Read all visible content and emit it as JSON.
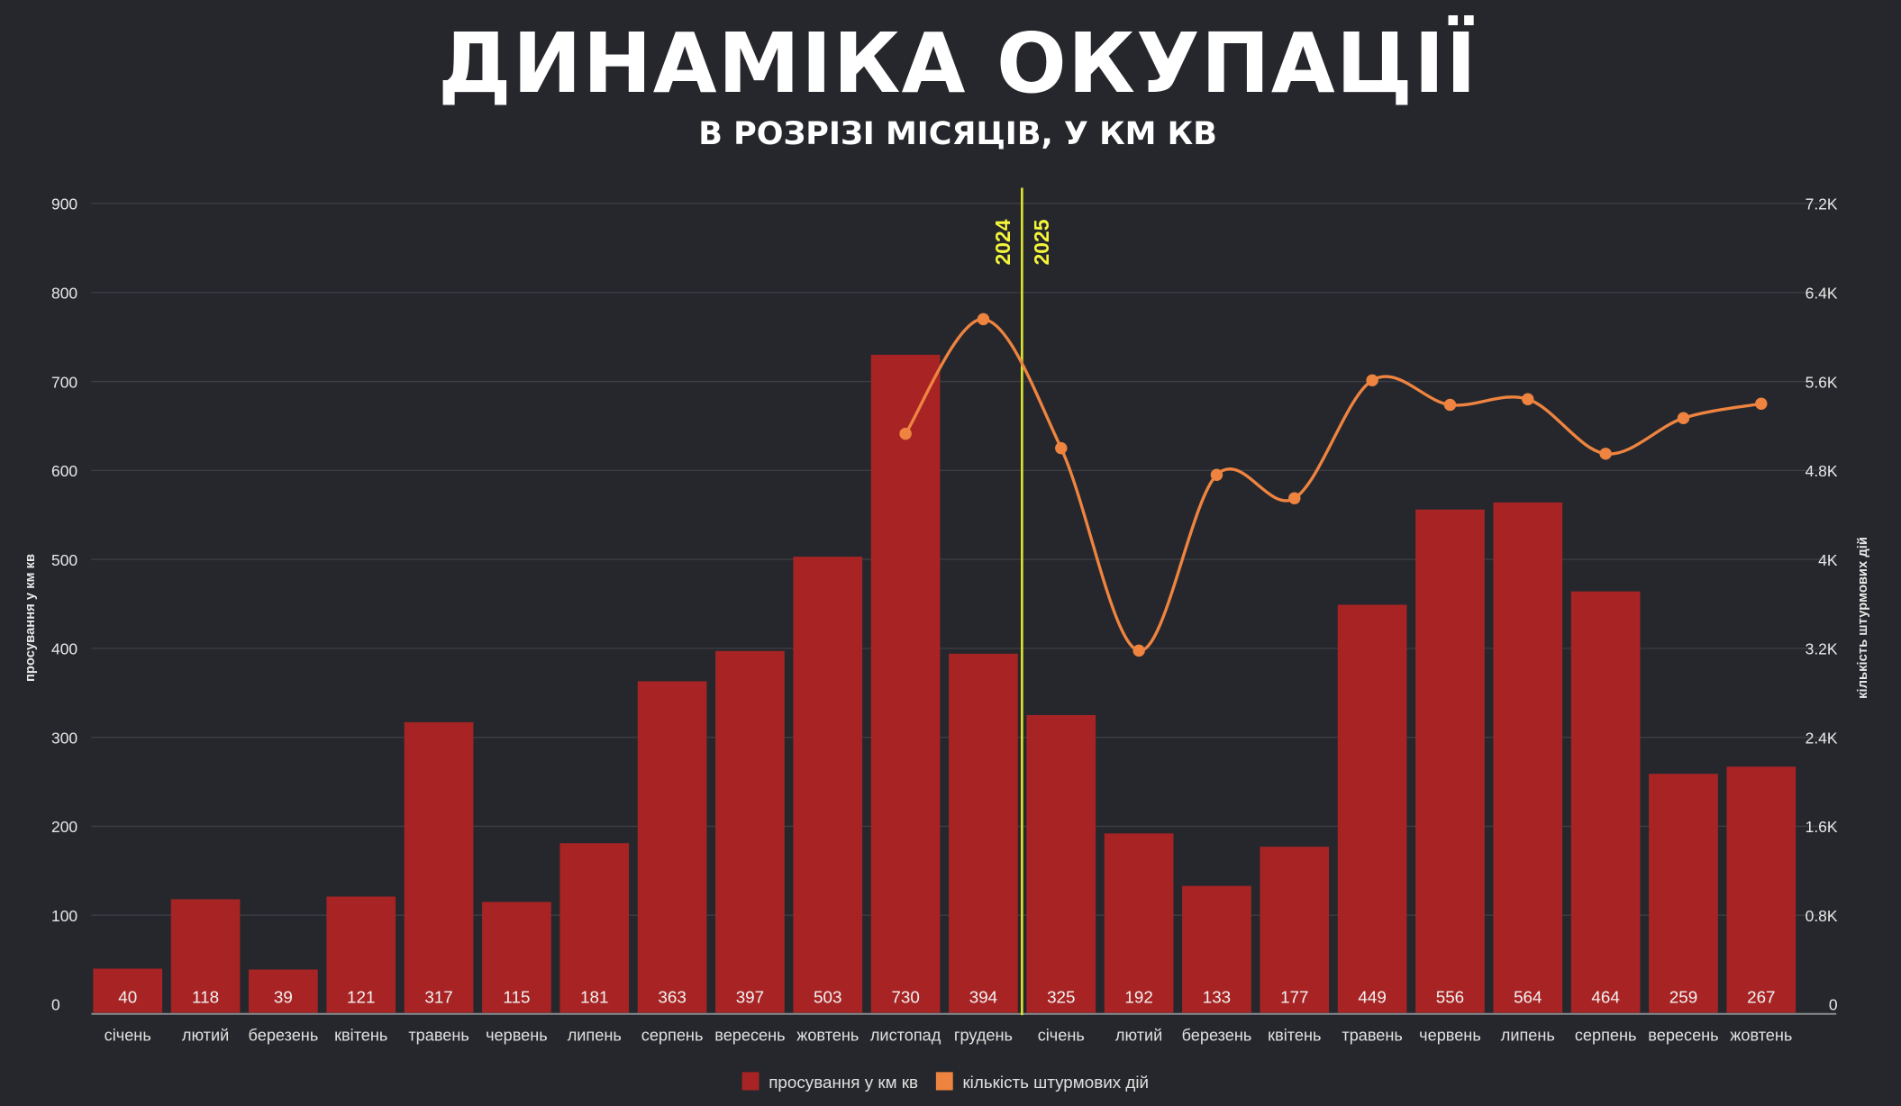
{
  "title": "ДИНАМІКА ОКУПАЦІЇ",
  "subtitle": "В РОЗРІЗІ МІСЯЦІВ, У КМ КВ",
  "chart_data": {
    "type": "bar+line",
    "title": "ДИНАМІКА ОКУПАЦІЇ",
    "subtitle": "В РОЗРІЗІ МІСЯЦІВ, У КМ КВ",
    "categories": [
      "січень",
      "лютий",
      "березень",
      "квітень",
      "травень",
      "червень",
      "липень",
      "серпень",
      "вересень",
      "жовтень",
      "листопад",
      "грудень",
      "січень",
      "лютий",
      "березень",
      "квітень",
      "травень",
      "червень",
      "липень",
      "серпень",
      "вересень",
      "жовтень"
    ],
    "year_markers": [
      "2024",
      "2025"
    ],
    "y_left": {
      "label": "просування у км кв",
      "range": [
        0,
        900
      ],
      "ticks": [
        "0",
        "100",
        "200",
        "300",
        "400",
        "500",
        "600",
        "700",
        "800",
        "900"
      ]
    },
    "y_right": {
      "label": "кількість штурмових дій",
      "range": [
        0,
        7200
      ],
      "ticks": [
        "0",
        "0.8K",
        "1.6K",
        "2.4K",
        "3.2K",
        "4K",
        "4.8K",
        "5.6K",
        "6.4K",
        "7.2K"
      ]
    },
    "series": [
      {
        "name": "просування у км кв",
        "type": "bar",
        "axis": "left",
        "color": "#a82424",
        "values": [
          40,
          118,
          39,
          121,
          317,
          115,
          181,
          363,
          397,
          503,
          730,
          394,
          325,
          192,
          133,
          177,
          449,
          556,
          564,
          464,
          259,
          267
        ]
      },
      {
        "name": "кількість штурмових дій",
        "type": "line",
        "axis": "right",
        "color": "#ee8440",
        "values": [
          null,
          null,
          null,
          null,
          null,
          null,
          null,
          null,
          null,
          null,
          5130,
          6160,
          5000,
          3180,
          4760,
          4550,
          5610,
          5390,
          5440,
          4950,
          5270,
          5400
        ]
      }
    ],
    "grid": true,
    "legend": "bottom",
    "colors": {
      "background": "#26272c",
      "bar": "#a82424",
      "line": "#ee8440",
      "year_line": "#d8e030"
    }
  }
}
